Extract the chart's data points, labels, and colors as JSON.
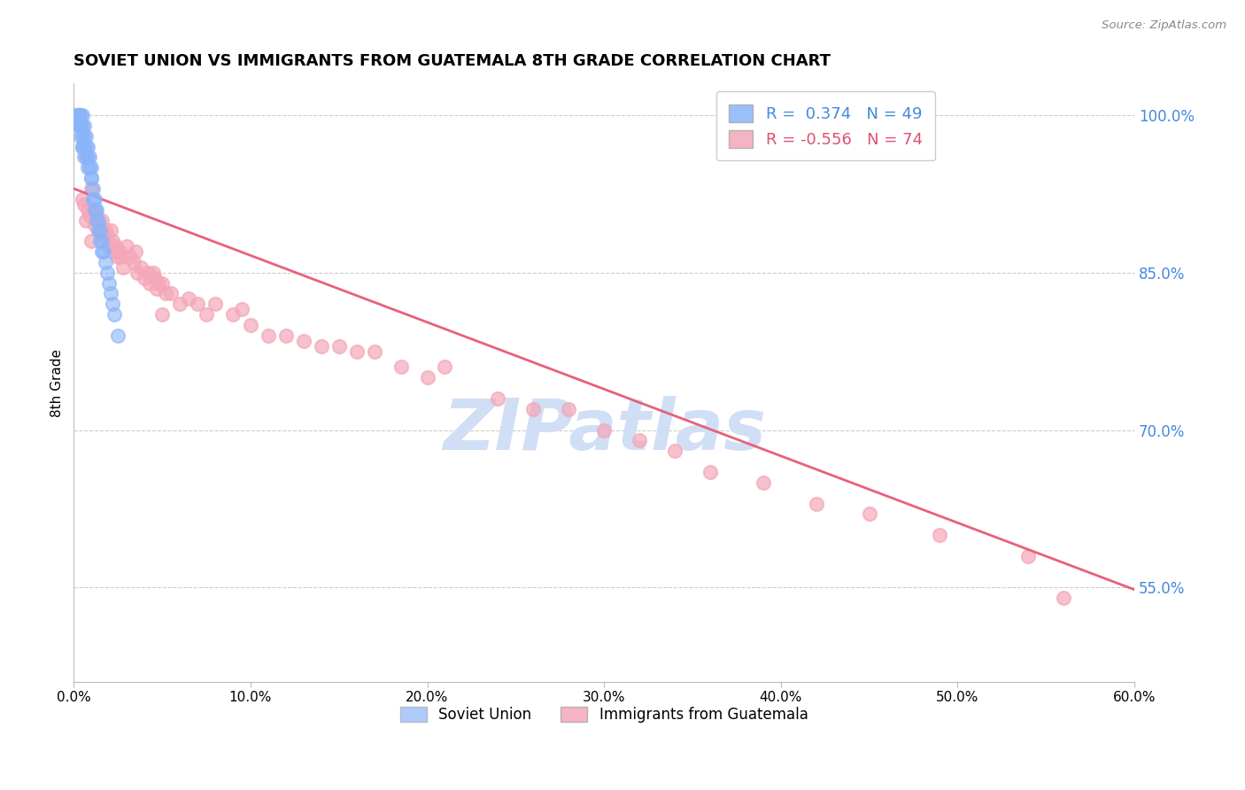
{
  "title": "SOVIET UNION VS IMMIGRANTS FROM GUATEMALA 8TH GRADE CORRELATION CHART",
  "source_text": "Source: ZipAtlas.com",
  "ylabel": "8th Grade",
  "right_yticks": [
    1.0,
    0.85,
    0.7,
    0.55
  ],
  "right_yticklabels": [
    "100.0%",
    "85.0%",
    "70.0%",
    "55.0%"
  ],
  "xlim": [
    0.0,
    0.6
  ],
  "ylim": [
    0.46,
    1.03
  ],
  "blue_label": "Soviet Union",
  "pink_label": "Immigrants from Guatemala",
  "blue_R": 0.374,
  "blue_N": 49,
  "pink_R": -0.556,
  "pink_N": 74,
  "blue_color": "#8AB4F8",
  "pink_color": "#F4A7B9",
  "pink_line_color": "#E8607A",
  "watermark_color": "#D0DFF5",
  "background_color": "#FFFFFF",
  "grid_color": "#CCCCCC",
  "blue_dots_x": [
    0.002,
    0.002,
    0.003,
    0.003,
    0.003,
    0.004,
    0.004,
    0.004,
    0.004,
    0.005,
    0.005,
    0.005,
    0.005,
    0.005,
    0.006,
    0.006,
    0.006,
    0.006,
    0.007,
    0.007,
    0.007,
    0.008,
    0.008,
    0.008,
    0.009,
    0.009,
    0.01,
    0.01,
    0.01,
    0.011,
    0.011,
    0.012,
    0.012,
    0.013,
    0.013,
    0.014,
    0.014,
    0.015,
    0.015,
    0.016,
    0.016,
    0.017,
    0.018,
    0.019,
    0.02,
    0.021,
    0.022,
    0.023,
    0.025
  ],
  "blue_dots_y": [
    1.0,
    1.0,
    1.0,
    1.0,
    0.99,
    1.0,
    0.99,
    0.99,
    0.98,
    1.0,
    0.99,
    0.98,
    0.97,
    0.97,
    0.99,
    0.98,
    0.97,
    0.96,
    0.98,
    0.97,
    0.96,
    0.97,
    0.96,
    0.95,
    0.96,
    0.95,
    0.95,
    0.94,
    0.94,
    0.93,
    0.92,
    0.92,
    0.91,
    0.91,
    0.9,
    0.9,
    0.89,
    0.89,
    0.88,
    0.88,
    0.87,
    0.87,
    0.86,
    0.85,
    0.84,
    0.83,
    0.82,
    0.81,
    0.79
  ],
  "pink_dots_x": [
    0.005,
    0.006,
    0.007,
    0.008,
    0.009,
    0.01,
    0.01,
    0.011,
    0.012,
    0.012,
    0.013,
    0.014,
    0.015,
    0.016,
    0.017,
    0.018,
    0.019,
    0.02,
    0.021,
    0.022,
    0.023,
    0.024,
    0.025,
    0.026,
    0.027,
    0.028,
    0.03,
    0.032,
    0.034,
    0.035,
    0.036,
    0.038,
    0.04,
    0.042,
    0.043,
    0.045,
    0.046,
    0.047,
    0.048,
    0.05,
    0.05,
    0.052,
    0.055,
    0.06,
    0.065,
    0.07,
    0.075,
    0.08,
    0.09,
    0.095,
    0.1,
    0.11,
    0.12,
    0.13,
    0.14,
    0.15,
    0.16,
    0.17,
    0.185,
    0.2,
    0.21,
    0.24,
    0.26,
    0.28,
    0.3,
    0.32,
    0.34,
    0.36,
    0.39,
    0.42,
    0.45,
    0.49,
    0.54,
    0.56
  ],
  "pink_dots_y": [
    0.92,
    0.915,
    0.9,
    0.91,
    0.905,
    0.93,
    0.88,
    0.91,
    0.91,
    0.895,
    0.905,
    0.89,
    0.895,
    0.9,
    0.885,
    0.89,
    0.885,
    0.875,
    0.89,
    0.88,
    0.87,
    0.875,
    0.865,
    0.87,
    0.865,
    0.855,
    0.875,
    0.865,
    0.86,
    0.87,
    0.85,
    0.855,
    0.845,
    0.85,
    0.84,
    0.85,
    0.845,
    0.835,
    0.84,
    0.81,
    0.84,
    0.83,
    0.83,
    0.82,
    0.825,
    0.82,
    0.81,
    0.82,
    0.81,
    0.815,
    0.8,
    0.79,
    0.79,
    0.785,
    0.78,
    0.78,
    0.775,
    0.775,
    0.76,
    0.75,
    0.76,
    0.73,
    0.72,
    0.72,
    0.7,
    0.69,
    0.68,
    0.66,
    0.65,
    0.63,
    0.62,
    0.6,
    0.58,
    0.54
  ],
  "pink_line_x": [
    0.0,
    0.6
  ],
  "pink_line_y": [
    0.93,
    0.548
  ]
}
